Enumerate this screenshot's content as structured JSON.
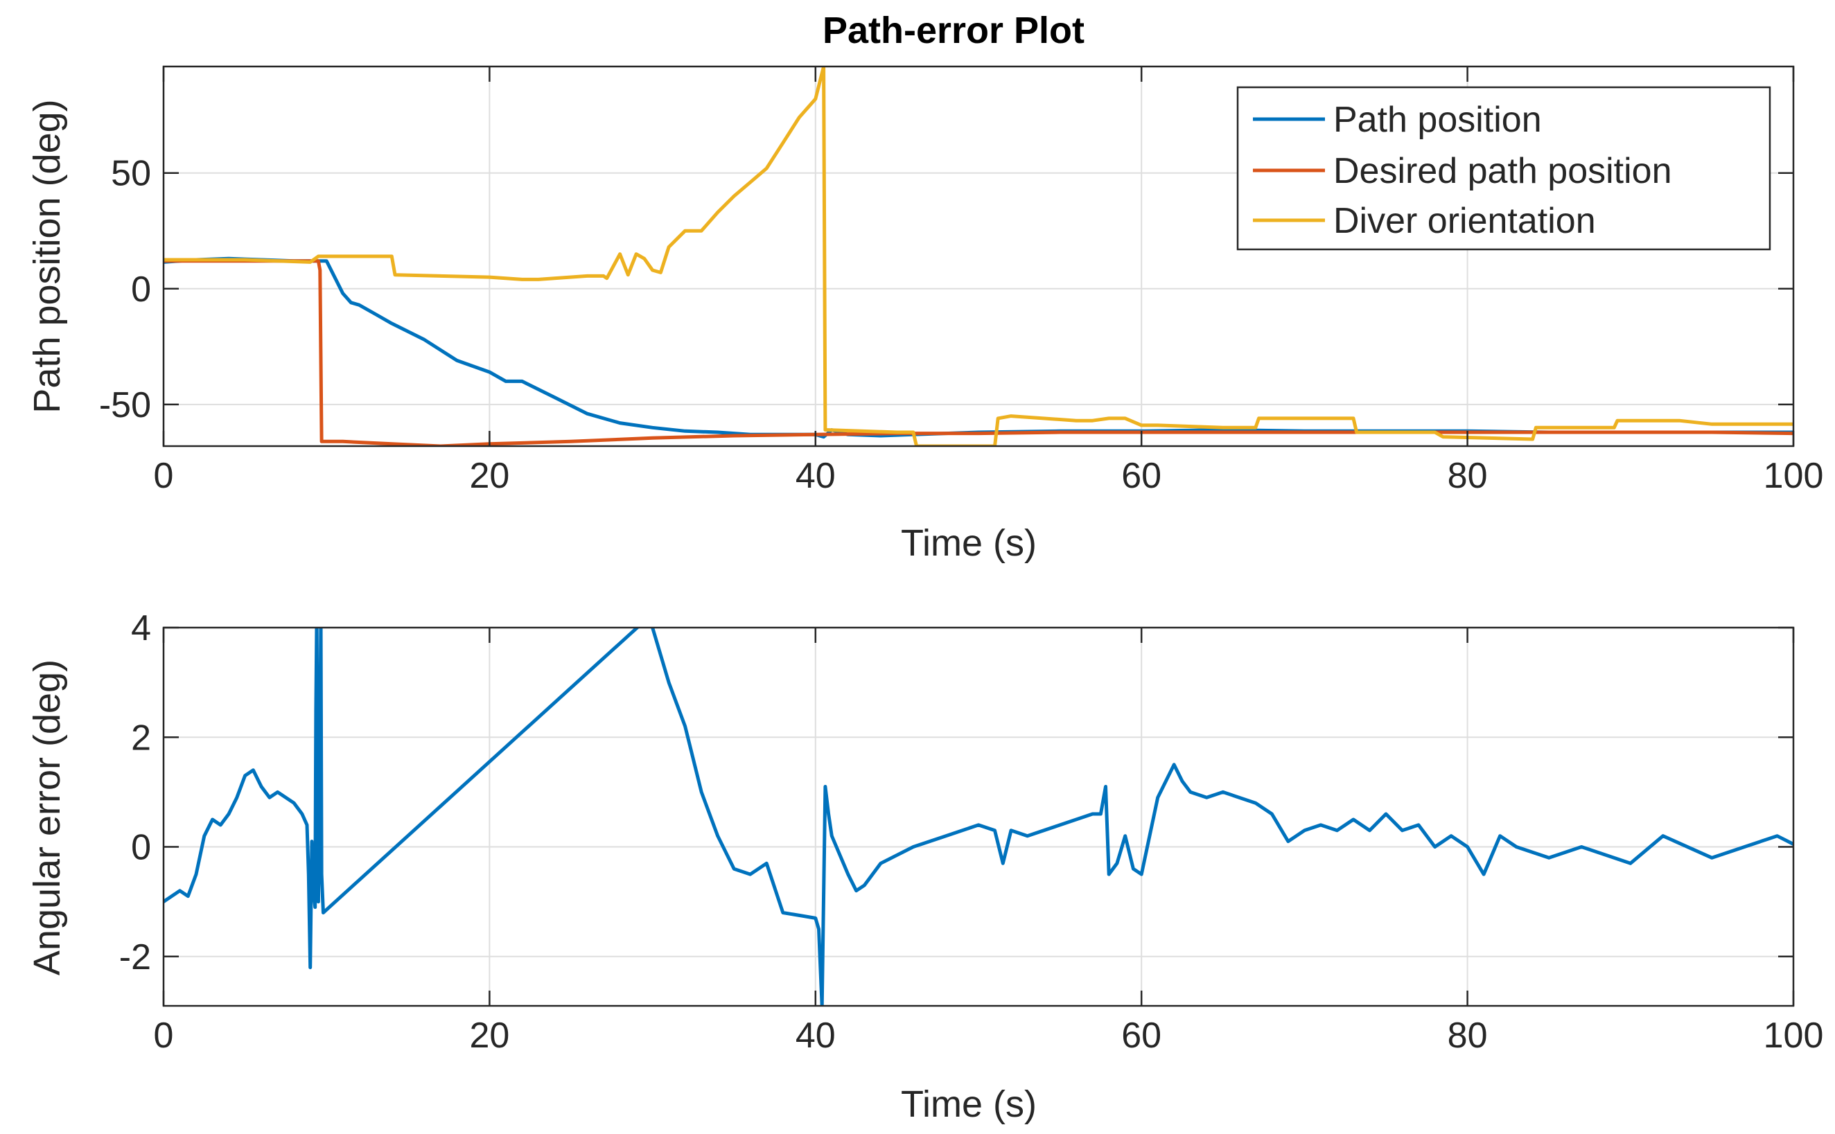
{
  "chart_data": [
    {
      "type": "line",
      "title": "Path-error Plot",
      "xlabel": "Time (s)",
      "ylabel": "Path position (deg)",
      "xlim": [
        0,
        100
      ],
      "ylim": [
        -68,
        96
      ],
      "xticks": [
        0,
        20,
        40,
        60,
        80,
        100
      ],
      "xtick_labels": [
        "0",
        "20",
        "40",
        "60",
        "80",
        "100"
      ],
      "yticks": [
        -50,
        0,
        50
      ],
      "ytick_labels": [
        "-50",
        "0",
        "50"
      ],
      "grid": true,
      "legend_position": "top-right",
      "series": [
        {
          "name": "Path position",
          "color": "#0072BD",
          "x": [
            0,
            2,
            4,
            6,
            8,
            9.5,
            10,
            11,
            11.5,
            12,
            13,
            14,
            16,
            18,
            20,
            21,
            22,
            24,
            26,
            28,
            30,
            32,
            34,
            36,
            38,
            40,
            40.5,
            41,
            42,
            44,
            46,
            48,
            50,
            55,
            60,
            65,
            70,
            75,
            80,
            85,
            90,
            95,
            100
          ],
          "y": [
            11.5,
            12.5,
            13,
            12.5,
            12,
            12,
            12,
            -2,
            -6,
            -7,
            -11,
            -15,
            -22,
            -31,
            -36,
            -40,
            -40,
            -47,
            -54,
            -58,
            -60,
            -61.5,
            -62,
            -63,
            -63,
            -63,
            -64,
            -61,
            -63,
            -63.5,
            -63,
            -62.5,
            -62,
            -61.5,
            -61.5,
            -61,
            -61.5,
            -61.5,
            -61.5,
            -62,
            -62,
            -62,
            -62
          ]
        },
        {
          "name": "Desired path position",
          "color": "#D95319",
          "x": [
            0,
            5,
            9.5,
            9.6,
            9.7,
            11,
            14,
            17,
            20,
            25,
            30,
            35,
            40,
            45,
            50,
            55,
            60,
            65,
            70,
            75,
            80,
            85,
            90,
            95,
            100
          ],
          "y": [
            12,
            12,
            12,
            8,
            -66,
            -66,
            -67,
            -68,
            -67,
            -66,
            -64.5,
            -63.5,
            -63,
            -62.5,
            -62.5,
            -62,
            -62,
            -62,
            -62,
            -62,
            -62,
            -62,
            -62,
            -62,
            -62.5
          ]
        },
        {
          "name": "Diver orientation",
          "color": "#EDB120",
          "x": [
            0,
            5,
            9,
            9.5,
            14,
            14.2,
            20,
            22,
            23,
            26,
            27,
            27.2,
            28,
            28.5,
            29,
            29.5,
            30,
            30.5,
            31,
            32,
            33,
            34,
            35,
            36,
            37,
            38,
            39,
            40,
            40.5,
            40.6,
            40.8,
            45,
            46,
            46.2,
            51,
            51.2,
            52,
            56,
            57,
            58,
            59,
            60,
            61,
            65,
            67,
            67.2,
            73,
            73.2,
            77,
            78,
            78.5,
            84,
            84.2,
            89,
            89.2,
            93,
            95,
            100
          ],
          "y": [
            12.5,
            12.5,
            11.5,
            14,
            14,
            6,
            5,
            4,
            4,
            5.5,
            5.5,
            4.5,
            15,
            6,
            15,
            13,
            8,
            7,
            18,
            25,
            25,
            33,
            40,
            46,
            52,
            63,
            74,
            82,
            96,
            -61,
            -61,
            -62,
            -62,
            -68,
            -68,
            -56,
            -55,
            -57,
            -57,
            -56,
            -56,
            -59,
            -59,
            -60,
            -60,
            -56,
            -56,
            -62,
            -62,
            -62,
            -64,
            -65,
            -60,
            -60,
            -57,
            -57,
            -58.5,
            -58.5
          ]
        }
      ]
    },
    {
      "type": "line",
      "title": "",
      "xlabel": "Time (s)",
      "ylabel": "Angular error (deg)",
      "xlim": [
        0,
        100
      ],
      "ylim": [
        -2.9,
        4
      ],
      "xticks": [
        0,
        20,
        40,
        60,
        80,
        100
      ],
      "xtick_labels": [
        "0",
        "20",
        "40",
        "60",
        "80",
        "100"
      ],
      "yticks": [
        -2,
        0,
        2,
        4
      ],
      "ytick_labels": [
        "-2",
        "0",
        "2",
        "4"
      ],
      "grid": true,
      "series": [
        {
          "name": "Angular error",
          "color": "#0072BD",
          "x": [
            0,
            0.5,
            1,
            1.5,
            2,
            2.5,
            3,
            3.5,
            4,
            4.5,
            5,
            5.5,
            6,
            6.5,
            7,
            8,
            8.5,
            8.8,
            8.9,
            9.0,
            9.1,
            9.2,
            9.3,
            9.35,
            9.4,
            9.5,
            9.6,
            9.65,
            9.7,
            9.8,
            29.8,
            30,
            31,
            32,
            33,
            34,
            35,
            36,
            37,
            38,
            39,
            40,
            40.2,
            40.4,
            40.6,
            40.8,
            41,
            42,
            42.5,
            43,
            44,
            46,
            48,
            50,
            51,
            51.5,
            52,
            53,
            55,
            57,
            57.5,
            57.8,
            58,
            58.5,
            59,
            59.5,
            60,
            61,
            62,
            62.5,
            63,
            64,
            65,
            67,
            68,
            69,
            70,
            71,
            72,
            73,
            74,
            75,
            76,
            77,
            78,
            79,
            80,
            81,
            82,
            83,
            85,
            87,
            90,
            92,
            95,
            97,
            99,
            100
          ],
          "y": [
            -1,
            -0.9,
            -0.8,
            -0.9,
            -0.5,
            0.2,
            0.5,
            0.4,
            0.6,
            0.9,
            1.3,
            1.4,
            1.1,
            0.9,
            1.0,
            0.8,
            0.6,
            0.4,
            -0.5,
            -2.2,
            0.1,
            -0.8,
            -1.1,
            2.5,
            4.2,
            -1.0,
            2.0,
            4.2,
            -0.5,
            -1.2,
            4.2,
            4.0,
            3.0,
            2.2,
            1.0,
            0.2,
            -0.4,
            -0.5,
            -0.3,
            -1.2,
            -1.25,
            -1.3,
            -1.5,
            -2.9,
            1.1,
            0.6,
            0.2,
            -0.5,
            -0.8,
            -0.7,
            -0.3,
            0.0,
            0.2,
            0.4,
            0.3,
            -0.3,
            0.3,
            0.2,
            0.4,
            0.6,
            0.6,
            1.1,
            -0.5,
            -0.3,
            0.2,
            -0.4,
            -0.5,
            0.9,
            1.5,
            1.2,
            1.0,
            0.9,
            1.0,
            0.8,
            0.6,
            0.1,
            0.3,
            0.4,
            0.3,
            0.5,
            0.3,
            0.6,
            0.3,
            0.4,
            0.0,
            0.2,
            0.0,
            -0.5,
            0.2,
            0.0,
            -0.2,
            0.0,
            -0.3,
            0.2,
            -0.2,
            0.0,
            0.2,
            0.05
          ]
        }
      ]
    }
  ]
}
